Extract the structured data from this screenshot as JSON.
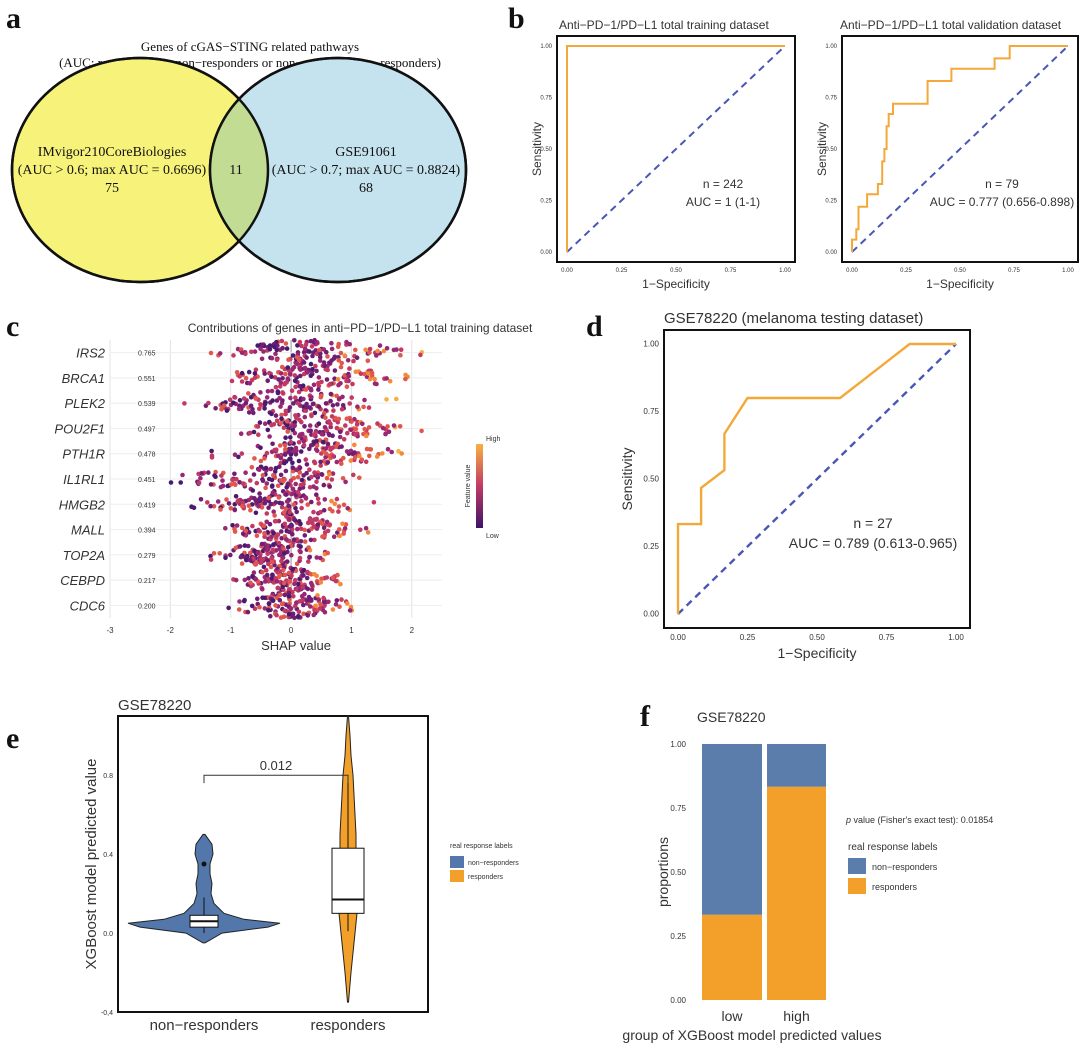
{
  "panels": {
    "a": {
      "letter": "a",
      "title": "Genes of cGAS−STING related pathways",
      "subtitle": "(AUC: responders vs. non−responders or non−responders vs. responders)",
      "left": {
        "name": "IMvigor210CoreBiologies",
        "criteria": "(AUC > 0.6; max AUC = 0.6696)",
        "count": "75"
      },
      "right": {
        "name": "GSE91061",
        "criteria": "(AUC > 0.7; max AUC = 0.8824)",
        "count": "68"
      },
      "overlap": "11",
      "colors": {
        "left": "#f6f27a",
        "right": "#c5e3ee",
        "overlap": "#c2dc94"
      }
    },
    "b": {
      "letter": "b"
    },
    "c": {
      "letter": "c"
    },
    "d": {
      "letter": "d"
    },
    "e": {
      "letter": "e"
    },
    "f": {
      "letter": "f"
    }
  },
  "chart_data": [
    {
      "id": "b1",
      "type": "line",
      "title": "Anti−PD−1/PD−L1 total training dataset",
      "xlabel": "1−Specificity",
      "ylabel": "Sensitivity",
      "xlim": [
        0,
        1
      ],
      "ylim": [
        0,
        1
      ],
      "ticks": [
        "0.00",
        "0.25",
        "0.50",
        "0.75",
        "1.00"
      ],
      "roc": [
        [
          0,
          0
        ],
        [
          0,
          1
        ],
        [
          1,
          1
        ]
      ],
      "n_label": "n = 242",
      "auc_label": "AUC = 1 (1-1)",
      "colors": {
        "roc": "#f3a93a",
        "diag": "#4a56b5"
      }
    },
    {
      "id": "b2",
      "type": "line",
      "title": "Anti−PD−1/PD−L1 total validation dataset",
      "xlabel": "1−Specificity",
      "ylabel": "Sensitivity",
      "xlim": [
        0,
        1
      ],
      "ylim": [
        0,
        1
      ],
      "ticks": [
        "0.00",
        "0.25",
        "0.50",
        "0.75",
        "1.00"
      ],
      "roc": [
        [
          0,
          0
        ],
        [
          0,
          0.06
        ],
        [
          0.02,
          0.06
        ],
        [
          0.02,
          0.11
        ],
        [
          0.03,
          0.11
        ],
        [
          0.03,
          0.22
        ],
        [
          0.07,
          0.22
        ],
        [
          0.07,
          0.28
        ],
        [
          0.12,
          0.28
        ],
        [
          0.12,
          0.33
        ],
        [
          0.14,
          0.33
        ],
        [
          0.14,
          0.44
        ],
        [
          0.15,
          0.44
        ],
        [
          0.15,
          0.5
        ],
        [
          0.16,
          0.5
        ],
        [
          0.16,
          0.61
        ],
        [
          0.17,
          0.61
        ],
        [
          0.17,
          0.67
        ],
        [
          0.19,
          0.67
        ],
        [
          0.19,
          0.72
        ],
        [
          0.35,
          0.72
        ],
        [
          0.35,
          0.83
        ],
        [
          0.46,
          0.83
        ],
        [
          0.46,
          0.89
        ],
        [
          0.66,
          0.89
        ],
        [
          0.66,
          0.94
        ],
        [
          0.73,
          0.94
        ],
        [
          0.73,
          1
        ],
        [
          1,
          1
        ]
      ],
      "n_label": "n = 79",
      "auc_label": "AUC = 0.777 (0.656-0.898)",
      "colors": {
        "roc": "#f3a93a",
        "diag": "#4a56b5"
      }
    },
    {
      "id": "c",
      "type": "scatter",
      "title": "Contributions of genes in anti−PD−1/PD−L1 total training dataset",
      "xlabel": "SHAP value",
      "xlim": [
        -3,
        2.5
      ],
      "xticks": [
        "-3",
        "-2",
        "-1",
        "0",
        "1",
        "2"
      ],
      "genes": [
        "IRS2",
        "BRCA1",
        "PLEK2",
        "POU2F1",
        "PTH1R",
        "IL1RL1",
        "HMGB2",
        "MALL",
        "TOP2A",
        "CEBPD",
        "CDC6"
      ],
      "importance": [
        "0.765",
        "0.551",
        "0.539",
        "0.497",
        "0.478",
        "0.451",
        "0.419",
        "0.394",
        "0.279",
        "0.217",
        "0.200"
      ],
      "ranges": [
        [
          -1.5,
          2.2
        ],
        [
          -1.3,
          2.0
        ],
        [
          -1.9,
          1.8
        ],
        [
          -1.2,
          2.2
        ],
        [
          -1.4,
          2.1
        ],
        [
          -2.1,
          1.5
        ],
        [
          -1.8,
          1.4
        ],
        [
          -1.1,
          1.4
        ],
        [
          -1.5,
          0.8
        ],
        [
          -1.0,
          0.9
        ],
        [
          -1.2,
          1.2
        ]
      ],
      "legend_title": "Feature value",
      "legend_high": "High",
      "legend_low": "Low"
    },
    {
      "id": "d",
      "type": "line",
      "title": "GSE78220 (melanoma testing dataset)",
      "xlabel": "1−Specificity",
      "ylabel": "Sensitivity",
      "xlim": [
        0,
        1
      ],
      "ylim": [
        0,
        1
      ],
      "ticks": [
        "0.00",
        "0.25",
        "0.50",
        "0.75",
        "1.00"
      ],
      "roc": [
        [
          0,
          0
        ],
        [
          0,
          0.333
        ],
        [
          0.083,
          0.333
        ],
        [
          0.083,
          0.467
        ],
        [
          0.167,
          0.533
        ],
        [
          0.167,
          0.667
        ],
        [
          0.25,
          0.8
        ],
        [
          0.583,
          0.8
        ],
        [
          0.833,
          1
        ],
        [
          1,
          1
        ]
      ],
      "n_label": "n = 27",
      "auc_label": "AUC = 0.789 (0.613-0.965)",
      "colors": {
        "roc": "#f3a93a",
        "diag": "#4a56b5"
      }
    },
    {
      "id": "e",
      "type": "violin",
      "title": "GSE78220",
      "ylabel": "XGBoost model predicted value",
      "categories": [
        "non−responders",
        "responders"
      ],
      "ylim": [
        -0.4,
        1.1
      ],
      "yticks": [
        "-0,4",
        "0.0",
        "0.4",
        "0.8"
      ],
      "pvalue": "0.012",
      "boxes": [
        {
          "q1": 0.03,
          "median": 0.06,
          "q3": 0.09,
          "whisker_low": 0.0,
          "whisker_high": 0.18,
          "outlier": 0.35
        },
        {
          "q1": 0.1,
          "median": 0.17,
          "q3": 0.43,
          "whisker_low": 0.01,
          "whisker_high": 0.77,
          "outlier": null
        }
      ],
      "legend_title": "real response labels",
      "legend_items": [
        "non−responders",
        "responders"
      ],
      "colors": {
        "non_responders": "#5377ab",
        "responders": "#f3a02a"
      }
    },
    {
      "id": "f",
      "type": "bar",
      "title": "GSE78220",
      "xlabel": "group of XGBoost model predicted values",
      "ylabel": "proportions",
      "categories": [
        "low",
        "high"
      ],
      "ylim": [
        0,
        1
      ],
      "yticks": [
        "0.00",
        "0.25",
        "0.50",
        "0.75",
        "1.00"
      ],
      "series": [
        {
          "name": "responders",
          "values": [
            0.333,
            0.833
          ]
        },
        {
          "name": "non−responders",
          "values": [
            0.667,
            0.167
          ]
        }
      ],
      "pvalue_label_prefix": "p",
      "pvalue_label": " value (Fisher's exact test): 0.01854",
      "legend_title": "real response labels",
      "legend_items": [
        "non−responders",
        "responders"
      ],
      "colors": {
        "non_responders": "#5b7dac",
        "responders": "#f3a02a"
      }
    }
  ]
}
